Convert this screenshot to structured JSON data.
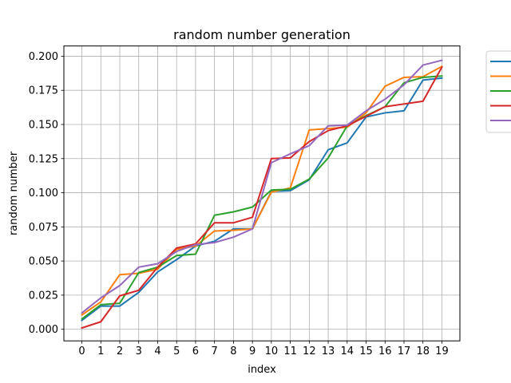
{
  "chart_data": {
    "type": "line",
    "title": "random number generation",
    "xlabel": "index",
    "ylabel": "random number",
    "x": [
      0,
      1,
      2,
      3,
      4,
      5,
      6,
      7,
      8,
      9,
      10,
      11,
      12,
      13,
      14,
      15,
      16,
      17,
      18,
      19
    ],
    "xlim": [
      -0.95,
      19.95
    ],
    "ylim": [
      -0.0085,
      0.2075
    ],
    "yticks": [
      "0.000",
      "0.025",
      "0.050",
      "0.075",
      "0.100",
      "0.125",
      "0.150",
      "0.175",
      "0.200"
    ],
    "grid": true,
    "legend": "outside-right",
    "series": [
      {
        "color": "#1f77b4",
        "values": [
          0.0065,
          0.017,
          0.017,
          0.027,
          0.042,
          0.051,
          0.061,
          0.0645,
          0.0735,
          0.0735,
          0.101,
          0.1015,
          0.1095,
          0.1315,
          0.1365,
          0.1555,
          0.1585,
          0.16,
          0.1825,
          0.184
        ]
      },
      {
        "color": "#ff7f0e",
        "values": [
          0.0105,
          0.02,
          0.04,
          0.041,
          0.044,
          0.0585,
          0.061,
          0.072,
          0.0725,
          0.0735,
          0.1005,
          0.1035,
          0.146,
          0.147,
          0.148,
          0.1585,
          0.178,
          0.1845,
          0.185,
          0.1925
        ]
      },
      {
        "color": "#2ca02c",
        "values": [
          0.0075,
          0.018,
          0.019,
          0.0415,
          0.0455,
          0.054,
          0.055,
          0.0835,
          0.086,
          0.0895,
          0.102,
          0.1025,
          0.11,
          0.1255,
          0.149,
          0.1565,
          0.163,
          0.1805,
          0.1845,
          0.1855
        ]
      },
      {
        "color": "#d62728",
        "values": [
          0.001,
          0.0055,
          0.0245,
          0.0285,
          0.0455,
          0.0595,
          0.0625,
          0.078,
          0.078,
          0.082,
          0.125,
          0.1255,
          0.1375,
          0.1455,
          0.149,
          0.156,
          0.163,
          0.165,
          0.167,
          0.192
        ]
      },
      {
        "color": "#9467bd",
        "values": [
          0.012,
          0.023,
          0.032,
          0.0455,
          0.048,
          0.057,
          0.062,
          0.0635,
          0.0675,
          0.0735,
          0.122,
          0.1285,
          0.1345,
          0.149,
          0.1495,
          0.16,
          0.1685,
          0.179,
          0.1935,
          0.197
        ]
      }
    ]
  }
}
